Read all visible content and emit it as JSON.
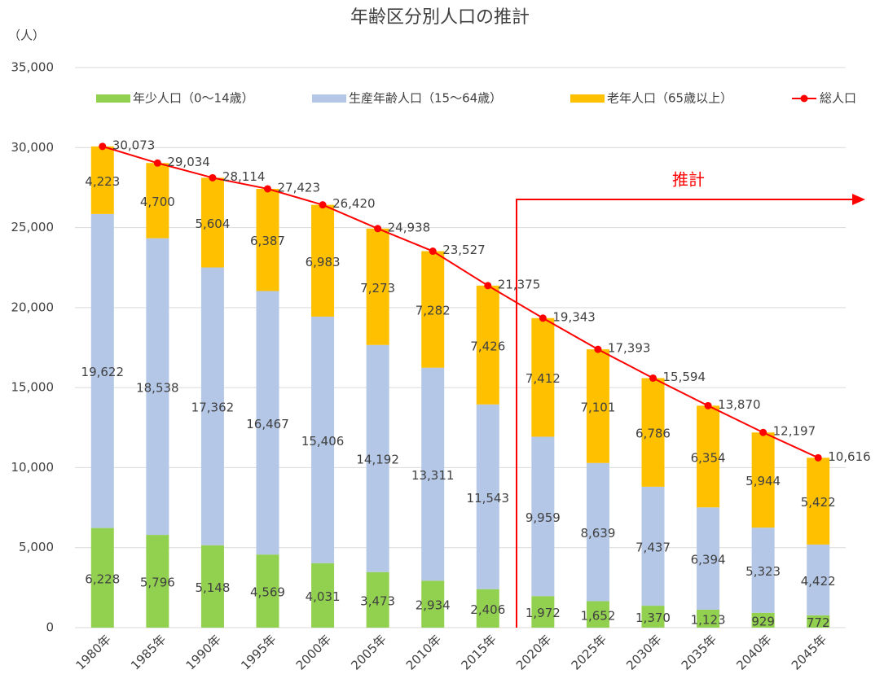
{
  "chart_data": {
    "type": "bar",
    "stacked": true,
    "title": "年齢区分別人口の推計",
    "y_axis_label": "（人）",
    "annotation": "推計",
    "categories": [
      "1980年",
      "1985年",
      "1990年",
      "1995年",
      "2000年",
      "2005年",
      "2010年",
      "2015年",
      "2020年",
      "2025年",
      "2030年",
      "2035年",
      "2040年",
      "2045年"
    ],
    "ylim": [
      0,
      35000
    ],
    "yticks": [
      0,
      {
        "value": 5000,
        "label": "5,000"
      },
      {
        "value": 10000,
        "label": "10,000"
      },
      {
        "value": 15000,
        "label": "15,000"
      },
      {
        "value": 20000,
        "label": "20,000"
      },
      {
        "value": 25000,
        "label": "25,000"
      },
      {
        "value": 30000,
        "label": "30,000"
      },
      {
        "value": 35000,
        "label": "35,000"
      }
    ],
    "grid": true,
    "legend": "top",
    "series": [
      {
        "name": "年少人口（0～14歳）",
        "color": "#92d050",
        "values": [
          6228,
          5796,
          5148,
          4569,
          4031,
          3473,
          2934,
          2406,
          1972,
          1652,
          1370,
          1123,
          929,
          772
        ],
        "value_labels": [
          "6,228",
          "5,796",
          "5,148",
          "4,569",
          "4,031",
          "3,473",
          "2,934",
          "2,406",
          "1,972",
          "1,652",
          "1,370",
          "1,123",
          "929",
          "772"
        ]
      },
      {
        "name": "生産年齢人口（15～64歳）",
        "color": "#b4c7e7",
        "values": [
          19622,
          18538,
          17362,
          16467,
          15406,
          14192,
          13311,
          11543,
          9959,
          8639,
          7437,
          6394,
          5323,
          4422
        ],
        "value_labels": [
          "19,622",
          "18,538",
          "17,362",
          "16,467",
          "15,406",
          "14,192",
          "13,311",
          "11,543",
          "9,959",
          "8,639",
          "7,437",
          "6,394",
          "5,323",
          "4,422"
        ]
      },
      {
        "name": "老年人口（65歳以上）",
        "color": "#ffc000",
        "values": [
          4223,
          4700,
          5604,
          6387,
          6983,
          7273,
          7282,
          7426,
          7412,
          7101,
          6786,
          6354,
          5944,
          5422
        ],
        "value_labels": [
          "4,223",
          "4,700",
          "5,604",
          "6,387",
          "6,983",
          "7,273",
          "7,282",
          "7,426",
          "7,412",
          "7,101",
          "6,786",
          "6,354",
          "5,944",
          "5,422"
        ]
      },
      {
        "name": "総人口",
        "type": "line",
        "color": "#ff0000",
        "values": [
          30073,
          29034,
          28114,
          27423,
          26420,
          24938,
          23527,
          21375,
          19343,
          17393,
          15594,
          13870,
          12197,
          10616
        ],
        "value_labels": [
          "30,073",
          "29,034",
          "28,114",
          "27,423",
          "26,420",
          "24,938",
          "23,527",
          "21,375",
          "19,343",
          "17,393",
          "15,594",
          "13,870",
          "12,197",
          "10,616"
        ]
      }
    ]
  }
}
